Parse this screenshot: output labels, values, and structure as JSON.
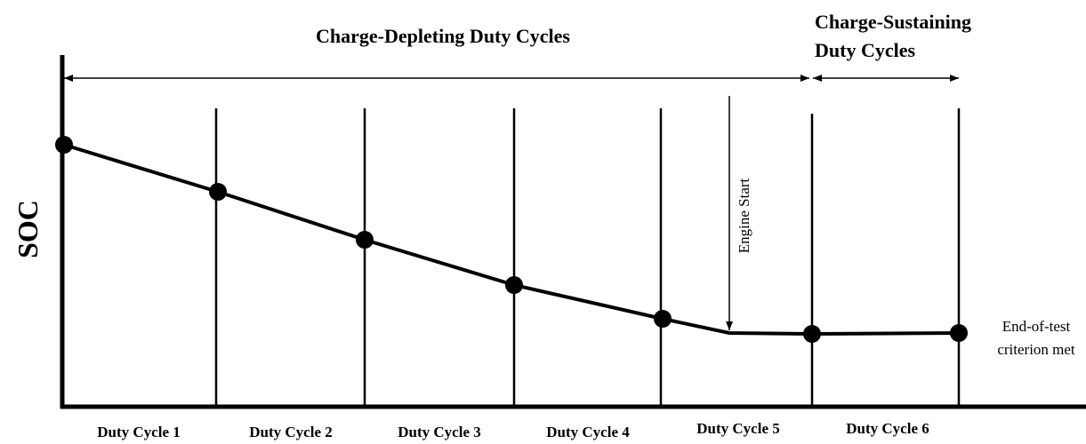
{
  "header": {
    "charge_depleting": "Charge-Depleting Duty Cycles",
    "charge_sustaining": [
      "Charge-Sustaining",
      "Duty Cycles"
    ]
  },
  "axis_label": "SOC",
  "annotations": {
    "engine_start": "Engine Start",
    "end_of_test": [
      "End-of-test",
      "criterion met"
    ]
  },
  "duty_cycles": [
    "Duty Cycle 1",
    "Duty Cycle 2",
    "Duty Cycle 3",
    "Duty Cycle 4",
    "Duty Cycle 5",
    "Duty Cycle 6"
  ]
}
